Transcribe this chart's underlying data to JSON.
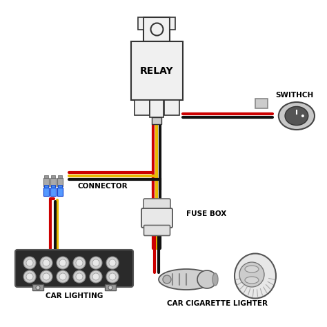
{
  "bg_color": "#ffffff",
  "wire_red": "#cc0000",
  "wire_yellow": "#e8b800",
  "wire_black": "#111111",
  "relay_label": "RELAY",
  "switch_label": "SWITHCH",
  "connector_label": "CONNECTOR",
  "fuse_label": "FUSE BOX",
  "car_light_label": "CAR LIGHTING",
  "cigarette_label": "CAR CIGARETTE LIGHTER",
  "label_fontsize": 7.5,
  "label_fontweight": "bold",
  "component_color": "#f0f0f0",
  "component_edge": "#333333",
  "wire_lw": 3.0
}
